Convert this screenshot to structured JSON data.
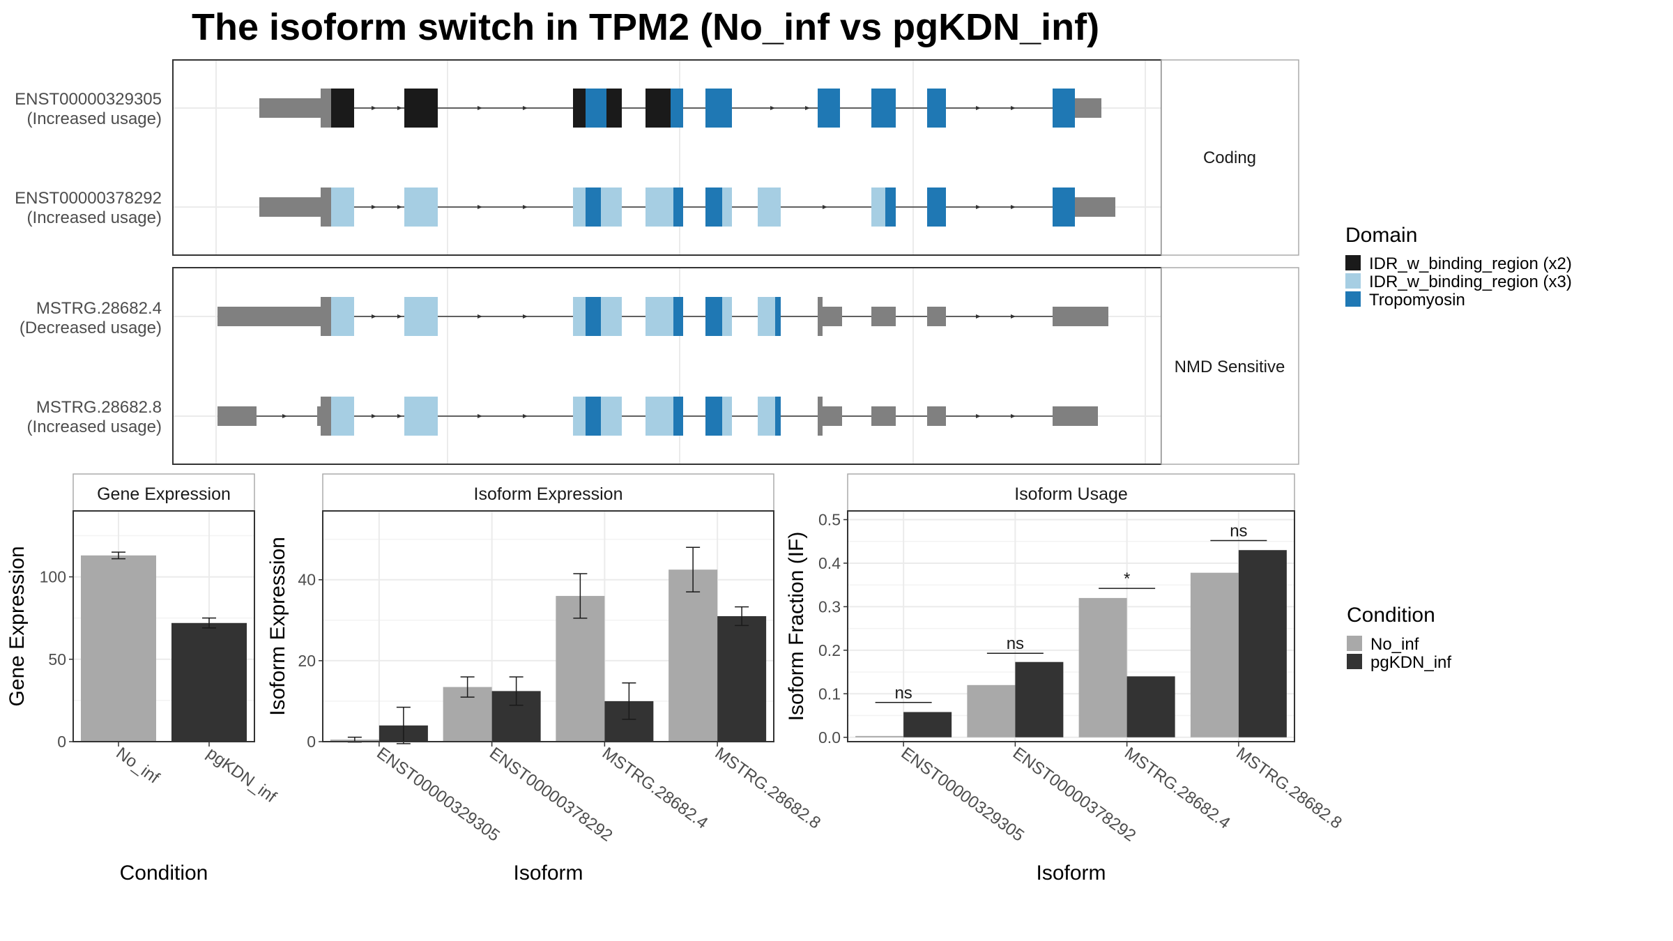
{
  "title": "The isoform switch in TPM2 (No_inf vs pgKDN_inf)",
  "colors": {
    "utr": "#808080",
    "dom_black": "#1a1a1a",
    "dom_light": "#a6cee3",
    "dom_blue": "#1f78b4",
    "no_inf": "#a9a9a9",
    "pgkdn_inf": "#333333",
    "grid": "#ebebeb",
    "frame": "#333333"
  },
  "structure": {
    "facets": [
      {
        "label": "Coding",
        "rows": [
          {
            "name": "ENST00000329305",
            "usage": "(Increased usage)"
          },
          {
            "name": "ENST00000378292",
            "usage": "(Increased usage)"
          }
        ]
      },
      {
        "label": "NMD Sensitive",
        "rows": [
          {
            "name": "MSTRG.28682.4",
            "usage": "(Decreased usage)"
          },
          {
            "name": "MSTRG.28682.8",
            "usage": "(Increased usage)"
          }
        ]
      }
    ],
    "legend": {
      "title": "Domain",
      "items": [
        {
          "label": "IDR_w_binding_region (x2)",
          "color": "#1a1a1a"
        },
        {
          "label": "IDR_w_binding_region (x3)",
          "color": "#a6cee3"
        },
        {
          "label": "Tropomyosin",
          "color": "#1f78b4"
        }
      ]
    }
  },
  "condition_legend": {
    "title": "Condition",
    "items": [
      {
        "label": "No_inf",
        "color": "#a9a9a9"
      },
      {
        "label": "pgKDN_inf",
        "color": "#333333"
      }
    ]
  },
  "chart_data": [
    {
      "type": "bar",
      "title": "Gene Expression",
      "xlabel": "Condition",
      "ylabel": "Gene Expression",
      "categories": [
        "No_inf",
        "pgKDN_inf"
      ],
      "values": [
        113,
        72
      ],
      "errors": [
        2,
        3
      ],
      "ylim": [
        0,
        140
      ],
      "yticks": [
        0,
        50,
        100
      ],
      "grid": true
    },
    {
      "type": "bar",
      "title": "Isoform Expression",
      "xlabel": "Isoform",
      "ylabel": "Isoform Expression",
      "categories": [
        "ENST00000329305",
        "ENST00000378292",
        "MSTRG.28682.4",
        "MSTRG.28682.8"
      ],
      "series": [
        {
          "name": "No_inf",
          "values": [
            0.5,
            13.5,
            36,
            42.5
          ],
          "errors": [
            0.6,
            2.5,
            5.5,
            5.5
          ]
        },
        {
          "name": "pgKDN_inf",
          "values": [
            4,
            12.5,
            10,
            31
          ],
          "errors": [
            4.5,
            3.5,
            4.5,
            2.3
          ]
        }
      ],
      "ylim": [
        0,
        57
      ],
      "yticks": [
        0,
        20,
        40
      ],
      "grid": true
    },
    {
      "type": "bar",
      "title": "Isoform Usage",
      "xlabel": "Isoform",
      "ylabel": "Isoform Fraction (IF)",
      "categories": [
        "ENST00000329305",
        "ENST00000378292",
        "MSTRG.28682.4",
        "MSTRG.28682.8"
      ],
      "series": [
        {
          "name": "No_inf",
          "values": [
            0.003,
            0.12,
            0.32,
            0.378
          ]
        },
        {
          "name": "pgKDN_inf",
          "values": [
            0.058,
            0.173,
            0.14,
            0.43
          ]
        }
      ],
      "annotations": [
        {
          "label": "ns",
          "y": 0.08
        },
        {
          "label": "ns",
          "y": 0.193
        },
        {
          "label": "*",
          "y": 0.342
        },
        {
          "label": "ns",
          "y": 0.452
        }
      ],
      "ylim": [
        -0.01,
        0.52
      ],
      "yticks": [
        0.0,
        0.1,
        0.2,
        0.3,
        0.4,
        0.5
      ],
      "ytick_labels": [
        "0.0",
        "0.1",
        "0.2",
        "0.3",
        "0.4",
        "0.5"
      ],
      "grid": true
    }
  ]
}
